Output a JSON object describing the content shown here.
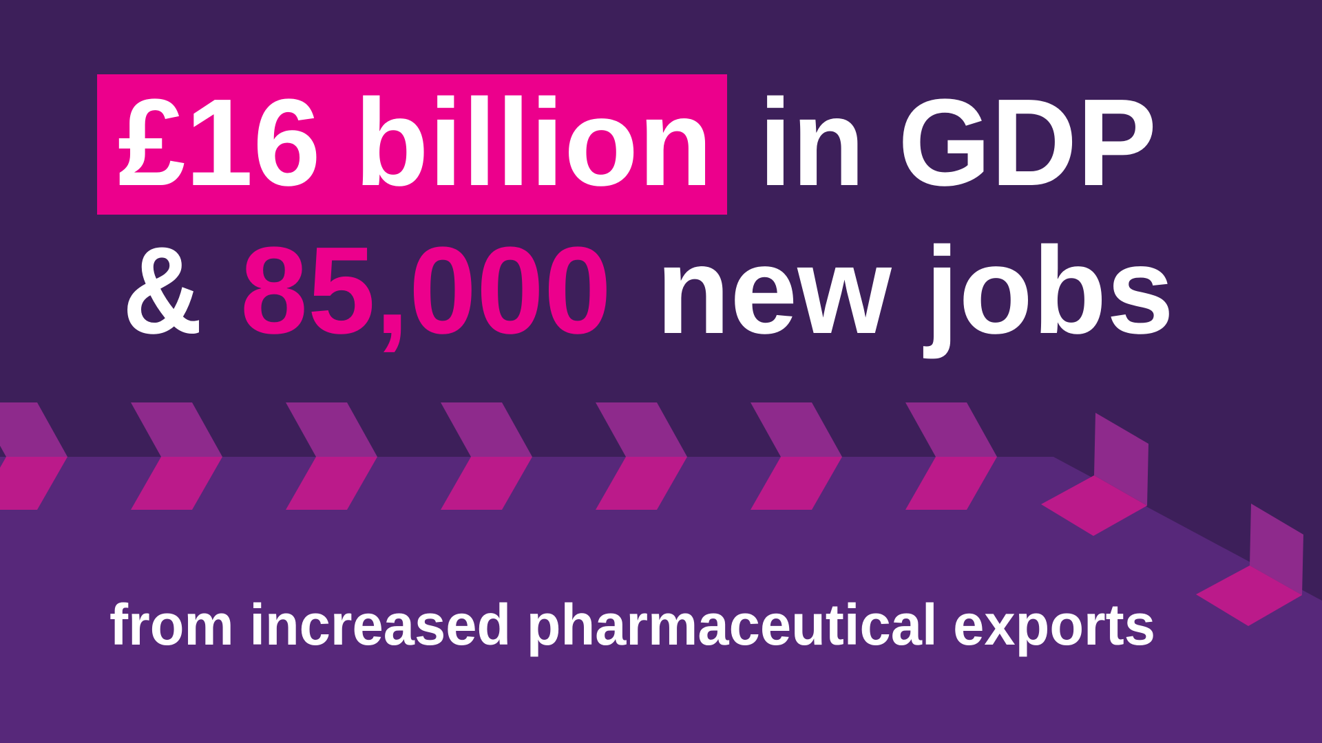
{
  "headline": {
    "highlight": "£16 billion",
    "line1_rest": "in GDP",
    "ampersand": "&",
    "jobs_number": "85,000",
    "line2_rest": "new jobs"
  },
  "subtitle": "from increased pharmaceutical exports",
  "colors": {
    "background_dark": "#3D1F5A",
    "background_band": "#57287A",
    "highlight_pink": "#EC008C",
    "chevron_light": "#8E2A8C",
    "chevron_pink": "#BB1A8A",
    "text": "#FFFFFF"
  }
}
